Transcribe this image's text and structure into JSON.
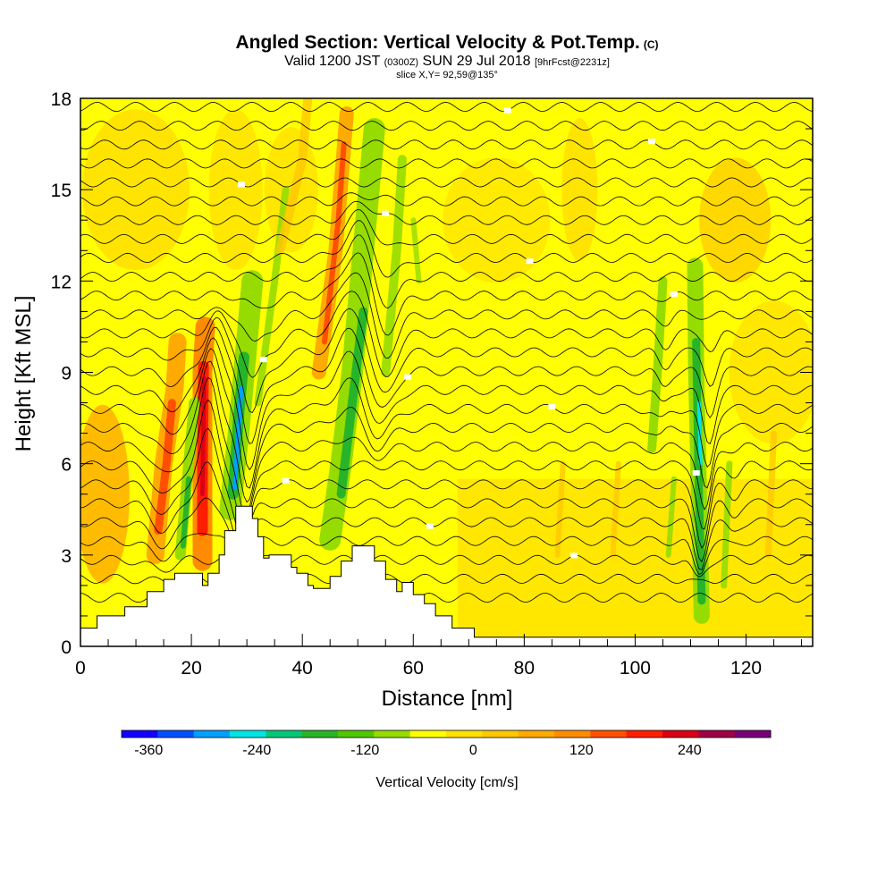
{
  "header": {
    "title": "Angled Section: Vertical Velocity & Pot.Temp.",
    "title_unit": "(C)",
    "valid_main": "Valid 1200 JST",
    "valid_utc": "(0300Z)",
    "valid_date": "SUN 29 Jul 2018",
    "forecast": "[9hrFcst@2231z]",
    "slice": "slice X,Y= 92,59@135°"
  },
  "chart_data": {
    "type": "heatmap",
    "xlabel": "Distance [nm]",
    "ylabel": "Height [Kft MSL]",
    "xlim": [
      0,
      132
    ],
    "ylim": [
      0,
      18
    ],
    "x_ticks": [
      "0",
      "20",
      "40",
      "60",
      "80",
      "100",
      "120"
    ],
    "y_ticks": [
      "0",
      "3",
      "6",
      "9",
      "12",
      "15",
      "18"
    ],
    "colorbar": {
      "title": "Vertical Velocity [cm/s]",
      "tick_labels": [
        "-360",
        "-240",
        "-120",
        "0",
        "120",
        "240"
      ],
      "range": [
        -390,
        330
      ],
      "step": 30,
      "colors": [
        "#1400ff",
        "#0050ff",
        "#00a0ff",
        "#00e6e6",
        "#00c878",
        "#28b428",
        "#50c800",
        "#96dc00",
        "#ffff00",
        "#ffe100",
        "#ffc800",
        "#ffaa00",
        "#ff8c00",
        "#ff5000",
        "#ff1e00",
        "#dc0014",
        "#a00046",
        "#780078"
      ]
    },
    "updraft_axes_nm": [
      14,
      22,
      47,
      51
    ],
    "downdraft_axes_nm": [
      28,
      30,
      49,
      55,
      104,
      111
    ],
    "terrain_nm_kft": [
      [
        0,
        0.6
      ],
      [
        3,
        0.6
      ],
      [
        3,
        1.0
      ],
      [
        8,
        1.0
      ],
      [
        8,
        1.3
      ],
      [
        12,
        1.3
      ],
      [
        12,
        1.8
      ],
      [
        15,
        1.8
      ],
      [
        15,
        2.2
      ],
      [
        17,
        2.2
      ],
      [
        17,
        2.4
      ],
      [
        22,
        2.4
      ],
      [
        22,
        2.0
      ],
      [
        23,
        2.0
      ],
      [
        23,
        2.4
      ],
      [
        25,
        2.4
      ],
      [
        25,
        3.0
      ],
      [
        26,
        3.0
      ],
      [
        26,
        3.8
      ],
      [
        28,
        3.8
      ],
      [
        28,
        4.6
      ],
      [
        31,
        4.6
      ],
      [
        31,
        4.2
      ],
      [
        32,
        4.2
      ],
      [
        32,
        3.6
      ],
      [
        33,
        3.6
      ],
      [
        33,
        2.9
      ],
      [
        34,
        2.9
      ],
      [
        34,
        3.0
      ],
      [
        38,
        3.0
      ],
      [
        38,
        2.6
      ],
      [
        39,
        2.6
      ],
      [
        39,
        2.4
      ],
      [
        41,
        2.4
      ],
      [
        41,
        2.0
      ],
      [
        42,
        2.0
      ],
      [
        42,
        1.9
      ],
      [
        45,
        1.9
      ],
      [
        45,
        2.3
      ],
      [
        47,
        2.3
      ],
      [
        47,
        2.8
      ],
      [
        49,
        2.8
      ],
      [
        49,
        3.3
      ],
      [
        53,
        3.3
      ],
      [
        53,
        2.8
      ],
      [
        55,
        2.8
      ],
      [
        55,
        2.2
      ],
      [
        57,
        2.2
      ],
      [
        57,
        1.8
      ],
      [
        58,
        1.8
      ],
      [
        58,
        2.1
      ],
      [
        60,
        2.1
      ],
      [
        60,
        1.7
      ],
      [
        62,
        1.7
      ],
      [
        62,
        1.4
      ],
      [
        64,
        1.4
      ],
      [
        64,
        1.0
      ],
      [
        67,
        1.0
      ],
      [
        67,
        0.6
      ],
      [
        71,
        0.6
      ],
      [
        71,
        0.3
      ],
      [
        132,
        0.3
      ]
    ]
  }
}
